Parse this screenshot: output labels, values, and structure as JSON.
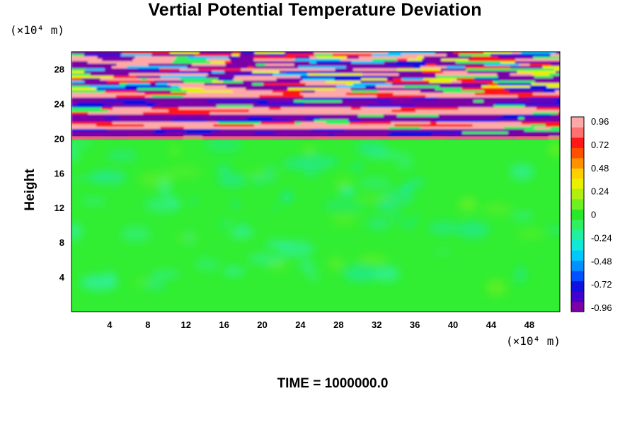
{
  "chart_data": {
    "type": "heatmap",
    "title": "Vertial Potential Temperature Deviation",
    "xlabel": "",
    "ylabel": "Height",
    "x_unit": "(×10⁴ m)",
    "y_unit": "(×10⁴ m)",
    "footer": "TIME = 1000000.0",
    "x_ticks": [
      4,
      8,
      12,
      16,
      20,
      24,
      28,
      32,
      36,
      40,
      44,
      48
    ],
    "y_ticks": [
      4,
      8,
      12,
      16,
      20,
      24,
      28
    ],
    "xlim": [
      0,
      51.2
    ],
    "ylim": [
      0,
      30
    ],
    "colorbar": {
      "ticks": [
        "0.96",
        "0.72",
        "0.48",
        "0.24",
        "0",
        "-0.24",
        "-0.48",
        "-0.72",
        "-0.96"
      ],
      "range": [
        -0.96,
        0.96
      ],
      "colors": [
        "#7a00a8",
        "#4400cc",
        "#1010e0",
        "#0050ff",
        "#0090ff",
        "#00c8ff",
        "#10e8d8",
        "#20f0a0",
        "#30f060",
        "#28e828",
        "#70f020",
        "#b0f010",
        "#e8f000",
        "#ffd000",
        "#ff9000",
        "#ff5000",
        "#ff1818",
        "#ff7070",
        "#ffa8a8"
      ]
    },
    "regions": [
      {
        "y_range": [
          0,
          20
        ],
        "description_value": 0.0
      },
      {
        "y_range": [
          20,
          30
        ],
        "description_value": "alternating bands from -0.96 to 0.96"
      }
    ]
  }
}
